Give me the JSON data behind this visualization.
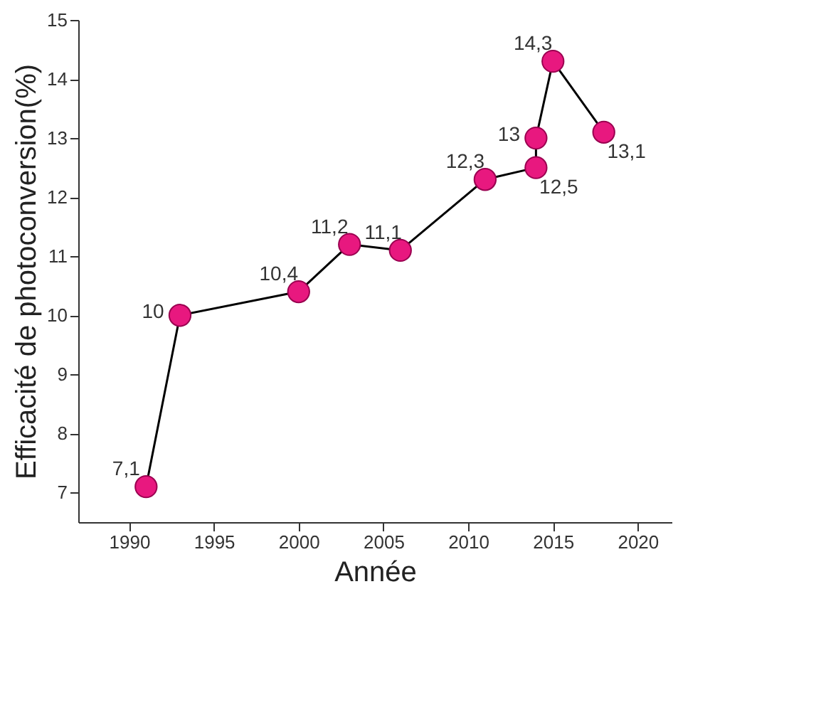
{
  "chart_data": {
    "type": "line",
    "xlabel": "Année",
    "ylabel": "Efficacité de photoconversion(%)",
    "x": [
      1991,
      1993,
      2000,
      2003,
      2006,
      2011,
      2014,
      2014,
      2015,
      2018
    ],
    "series": [
      {
        "color": "#e8187f",
        "values": [
          7.1,
          10,
          10.4,
          11.2,
          11.1,
          12.3,
          12.5,
          13,
          14.3,
          13.1
        ],
        "value_labels": [
          "7,1",
          "10",
          "10,4",
          "11,2",
          "11,1",
          "12,3",
          "12,5",
          "13",
          "14,3",
          "13,1"
        ]
      }
    ],
    "xlim": [
      1987,
      2022
    ],
    "xticks": [
      1990,
      1995,
      2000,
      2005,
      2010,
      2015,
      2020
    ],
    "ylim": [
      6.5,
      15
    ],
    "yticks": [
      7,
      8,
      9,
      10,
      11,
      12,
      13,
      14,
      15
    ],
    "marker": "circle",
    "line_style": "solid",
    "grid": false,
    "legend": false
  }
}
